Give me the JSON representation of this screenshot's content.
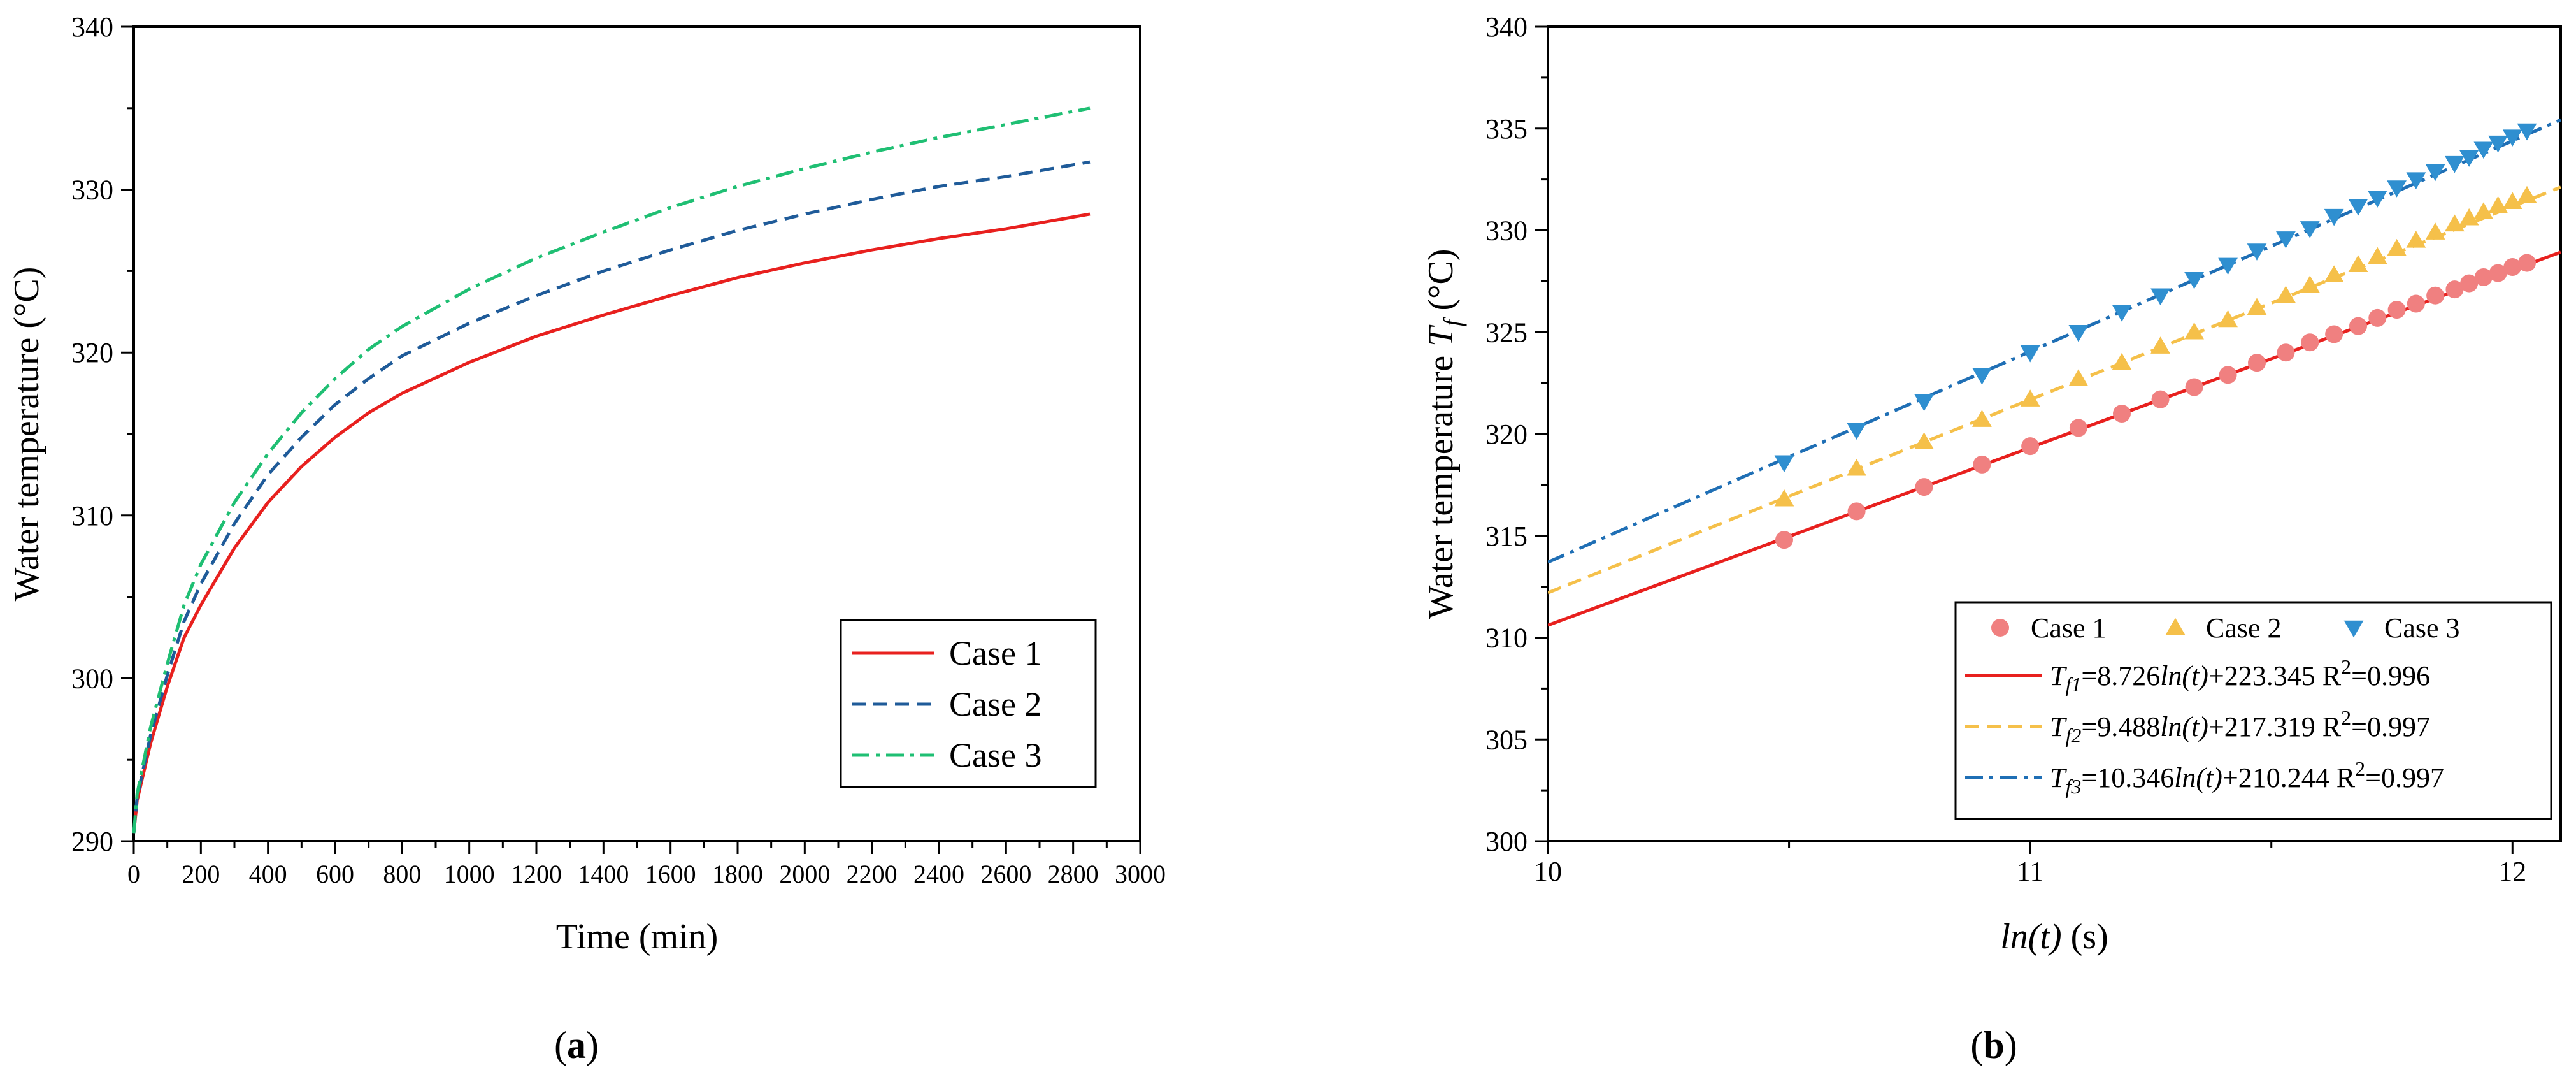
{
  "chart_data": [
    {
      "id": "a",
      "type": "line",
      "panel_label": "a",
      "title": "",
      "xlabel": "Time (min)",
      "ylabel": "Water temperature (°C)",
      "xlim": [
        0,
        3000
      ],
      "ylim": [
        290,
        340
      ],
      "x_ticks": [
        "0",
        "200",
        "400",
        "600",
        "800",
        "1000",
        "1200",
        "1400",
        "1600",
        "1800",
        "2000",
        "2200",
        "2400",
        "2600",
        "2800",
        "3000"
      ],
      "y_ticks": [
        "290",
        "300",
        "310",
        "320",
        "330",
        "340"
      ],
      "legend_position": "bottom-right",
      "x": [
        0,
        10,
        50,
        100,
        150,
        200,
        300,
        400,
        500,
        600,
        700,
        800,
        1000,
        1200,
        1400,
        1600,
        1800,
        2000,
        2200,
        2400,
        2600,
        2850
      ],
      "series": [
        {
          "name": "Case 1",
          "color": "#e8201e",
          "dash": "solid",
          "values": [
            290.5,
            292.5,
            296.0,
            299.5,
            302.5,
            304.5,
            308.0,
            310.8,
            313.0,
            314.8,
            316.3,
            317.5,
            319.4,
            321.0,
            322.3,
            323.5,
            324.6,
            325.5,
            326.3,
            327.0,
            327.6,
            328.5
          ]
        },
        {
          "name": "Case 2",
          "color": "#1f5b99",
          "dash": "dashed",
          "values": [
            290.5,
            292.7,
            296.5,
            300.2,
            303.5,
            305.8,
            309.5,
            312.5,
            314.8,
            316.8,
            318.4,
            319.8,
            321.8,
            323.5,
            325.0,
            326.3,
            327.5,
            328.5,
            329.4,
            330.2,
            330.8,
            331.7
          ]
        },
        {
          "name": "Case 3",
          "color": "#1fbf73",
          "dash": "dashdot",
          "values": [
            290.5,
            292.9,
            297.0,
            300.9,
            304.5,
            307.0,
            310.8,
            313.8,
            316.3,
            318.4,
            320.2,
            321.6,
            323.9,
            325.8,
            327.4,
            328.9,
            330.2,
            331.3,
            332.3,
            333.2,
            334.0,
            335.0
          ]
        }
      ]
    },
    {
      "id": "b",
      "type": "scatter",
      "panel_label": "b",
      "title": "",
      "xlabel_main": "ln(t)",
      "xlabel_unit": "(s)",
      "ylabel_main": "Water temperature ",
      "ylabel_sym": "T",
      "ylabel_sub": "f",
      "ylabel_unit": " (°C)",
      "xlim": [
        10,
        12.1
      ],
      "ylim": [
        300,
        340
      ],
      "x_ticks": [
        "10",
        "11",
        "12"
      ],
      "y_ticks": [
        "300",
        "305",
        "310",
        "315",
        "320",
        "325",
        "330",
        "335",
        "340"
      ],
      "legend_position": "bottom-right",
      "x": [
        10.49,
        10.64,
        10.78,
        10.9,
        11.0,
        11.1,
        11.19,
        11.27,
        11.34,
        11.41,
        11.47,
        11.53,
        11.58,
        11.63,
        11.68,
        11.72,
        11.76,
        11.8,
        11.84,
        11.88,
        11.91,
        11.94,
        11.97,
        12.0,
        12.03
      ],
      "series": [
        {
          "name": "Case 1",
          "marker": "circle",
          "color": "#f08080",
          "values": [
            314.8,
            316.2,
            317.4,
            318.5,
            319.4,
            320.3,
            321.0,
            321.7,
            322.3,
            322.9,
            323.5,
            324.0,
            324.5,
            324.9,
            325.3,
            325.7,
            326.1,
            326.4,
            326.8,
            327.1,
            327.4,
            327.7,
            327.9,
            328.2,
            328.4
          ]
        },
        {
          "name": "Case 2",
          "marker": "triangle-up",
          "color": "#f5c04a",
          "values": [
            316.8,
            318.3,
            319.6,
            320.7,
            321.7,
            322.7,
            323.5,
            324.3,
            325.0,
            325.6,
            326.2,
            326.8,
            327.3,
            327.8,
            328.3,
            328.7,
            329.1,
            329.5,
            329.9,
            330.3,
            330.6,
            330.9,
            331.2,
            331.4,
            331.7
          ]
        },
        {
          "name": "Case 3",
          "marker": "triangle-down",
          "color": "#2f8fd0",
          "values": [
            318.6,
            320.2,
            321.6,
            322.9,
            324.0,
            325.0,
            326.0,
            326.8,
            327.6,
            328.3,
            329.0,
            329.6,
            330.1,
            330.7,
            331.2,
            331.6,
            332.1,
            332.5,
            332.9,
            333.3,
            333.6,
            334.0,
            334.3,
            334.6,
            334.9
          ]
        }
      ],
      "fits": [
        {
          "name": "Tf1",
          "color": "#e8201e",
          "dash": "solid",
          "slope": 8.726,
          "intercept": 223.345,
          "label_sym": "T",
          "label_sub": "f1",
          "label_eq": "=8.726",
          "label_ln": "ln(t)",
          "label_tail": "+223.345 R",
          "label_sup": "2",
          "label_r2": "=0.996"
        },
        {
          "name": "Tf2",
          "color": "#f5c04a",
          "dash": "dashed",
          "slope": 9.488,
          "intercept": 217.319,
          "label_sym": "T",
          "label_sub": "f2",
          "label_eq": "=9.488",
          "label_ln": "ln(t)",
          "label_tail": "+217.319 R",
          "label_sup": "2",
          "label_r2": "=0.997"
        },
        {
          "name": "Tf3",
          "color": "#1f6fb5",
          "dash": "dashdot",
          "slope": 10.346,
          "intercept": 210.244,
          "label_sym": "T",
          "label_sub": "f3",
          "label_eq": "=10.346",
          "label_ln": "ln(t)",
          "label_tail": "+210.244 R",
          "label_sup": "2",
          "label_r2": "=0.997"
        }
      ]
    }
  ]
}
